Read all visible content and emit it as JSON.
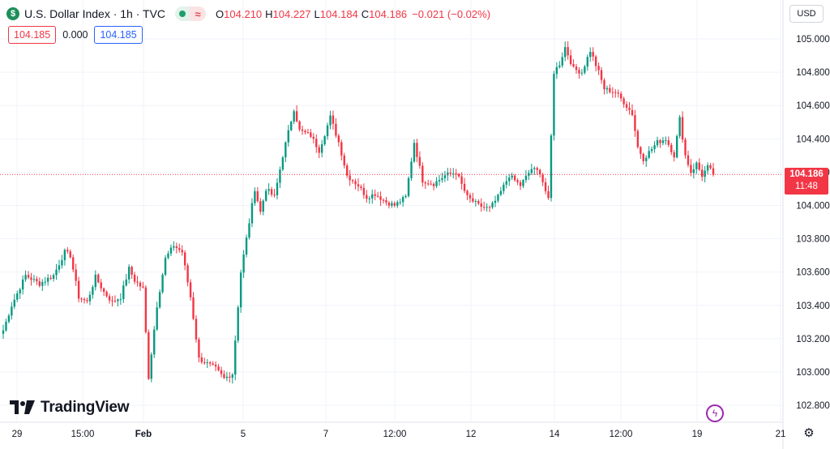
{
  "header": {
    "symbol_icon": "dollar-sign-icon",
    "title": "U.S. Dollar Index · 1h · TVC",
    "market_status_icons": [
      "market-open-dot-icon",
      "wave-icon"
    ],
    "open_label": "O",
    "open": "104.210",
    "high_label": "H",
    "high": "104.227",
    "low_label": "L",
    "low": "104.184",
    "close_label": "C",
    "close": "104.186",
    "change": "−0.021 (−0.02%)"
  },
  "price_boxes": {
    "bid": "104.185",
    "spread": "0.000",
    "ask": "104.185"
  },
  "currency_button": "USD",
  "last_price_tag": {
    "price": "104.186",
    "countdown": "11:48"
  },
  "watermark": "TradingView",
  "colors": {
    "up": "#089981",
    "down": "#f23645",
    "grid": "#f0f3fa",
    "text": "#131722",
    "last_line": "#f23645"
  },
  "chart_data": {
    "type": "candlestick",
    "y_axis_ticks": [
      "105.000",
      "104.800",
      "104.600",
      "104.400",
      "104.200",
      "104.000",
      "103.800",
      "103.600",
      "103.400",
      "103.200",
      "103.000",
      "102.800"
    ],
    "x_axis_ticks": [
      "29",
      "15:00",
      "Feb",
      "5",
      "7",
      "12:00",
      "12",
      "14",
      "12:00",
      "19",
      "21"
    ],
    "ylim": [
      102.75,
      105.05
    ],
    "last_price": 104.186,
    "grid": true,
    "close_path": [
      [
        0,
        103.25
      ],
      [
        3,
        103.4
      ],
      [
        8,
        103.58
      ],
      [
        13,
        103.53
      ],
      [
        18,
        103.58
      ],
      [
        22,
        103.72
      ],
      [
        24,
        103.7
      ],
      [
        27,
        103.45
      ],
      [
        30,
        103.42
      ],
      [
        33,
        103.57
      ],
      [
        36,
        103.48
      ],
      [
        39,
        103.42
      ],
      [
        42,
        103.45
      ],
      [
        45,
        103.62
      ],
      [
        47,
        103.55
      ],
      [
        50,
        103.5
      ],
      [
        52,
        102.97
      ],
      [
        55,
        103.4
      ],
      [
        58,
        103.68
      ],
      [
        61,
        103.76
      ],
      [
        64,
        103.72
      ],
      [
        67,
        103.45
      ],
      [
        70,
        103.08
      ],
      [
        73,
        103.05
      ],
      [
        76,
        103.02
      ],
      [
        79,
        102.96
      ],
      [
        82,
        102.99
      ],
      [
        85,
        103.6
      ],
      [
        88,
        103.9
      ],
      [
        90,
        104.1
      ],
      [
        92,
        103.96
      ],
      [
        94,
        104.1
      ],
      [
        97,
        104.05
      ],
      [
        100,
        104.3
      ],
      [
        104,
        104.58
      ],
      [
        106,
        104.45
      ],
      [
        110,
        104.42
      ],
      [
        113,
        104.33
      ],
      [
        117,
        104.53
      ],
      [
        120,
        104.38
      ],
      [
        123,
        104.18
      ],
      [
        127,
        104.12
      ],
      [
        130,
        104.05
      ],
      [
        133,
        104.07
      ],
      [
        137,
        104.02
      ],
      [
        140,
        104.0
      ],
      [
        144,
        104.05
      ],
      [
        147,
        104.38
      ],
      [
        150,
        104.15
      ],
      [
        154,
        104.13
      ],
      [
        158,
        104.18
      ],
      [
        162,
        104.2
      ],
      [
        166,
        104.05
      ],
      [
        170,
        104.0
      ],
      [
        174,
        103.98
      ],
      [
        177,
        104.05
      ],
      [
        181,
        104.18
      ],
      [
        185,
        104.12
      ],
      [
        189,
        104.22
      ],
      [
        192,
        104.2
      ],
      [
        195,
        104.03
      ],
      [
        197,
        104.8
      ],
      [
        199,
        104.85
      ],
      [
        201,
        104.95
      ],
      [
        204,
        104.82
      ],
      [
        207,
        104.8
      ],
      [
        210,
        104.93
      ],
      [
        213,
        104.8
      ],
      [
        215,
        104.7
      ],
      [
        219,
        104.68
      ],
      [
        222,
        104.62
      ],
      [
        225,
        104.55
      ],
      [
        227,
        104.35
      ],
      [
        229,
        104.28
      ],
      [
        231,
        104.32
      ],
      [
        234,
        104.38
      ],
      [
        237,
        104.4
      ],
      [
        240,
        104.3
      ],
      [
        242,
        104.52
      ],
      [
        244,
        104.3
      ],
      [
        246,
        104.2
      ],
      [
        248,
        104.25
      ],
      [
        250,
        104.18
      ],
      [
        252,
        104.23
      ],
      [
        254,
        104.19
      ]
    ]
  }
}
